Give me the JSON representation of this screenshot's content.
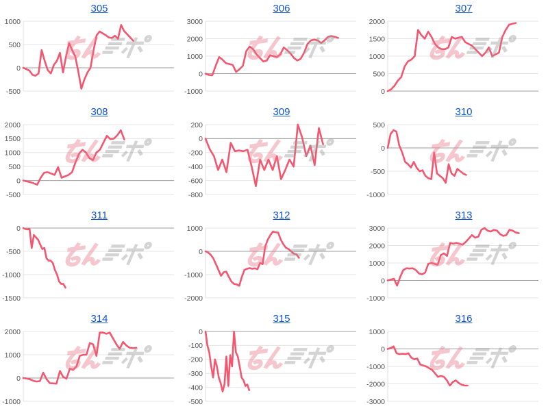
{
  "page": {
    "background": "#ffffff"
  },
  "colors": {
    "line": "#f4566f",
    "grid": "#e4e4e4",
    "zero_line": "#9e9e9e",
    "axis_line": "#dcdcdc",
    "tick_text": "#565656",
    "title_link": "#1155cc",
    "watermark_pink": "#e87a8a",
    "watermark_gray": "#9b9b9b"
  },
  "watermark": {
    "text": "みんレポ",
    "pink_text": "みん",
    "gray_text": "レポ",
    "opacity": 0.42
  },
  "chart_data": [
    {
      "type": "line",
      "title": "305",
      "ylim": [
        -500,
        1000
      ],
      "yticks": [
        1000,
        500,
        0,
        -500
      ],
      "x_span": 0.73,
      "values": [
        0,
        -30,
        -60,
        -150,
        -170,
        -120,
        380,
        150,
        -50,
        -120,
        60,
        150,
        320,
        -100,
        250,
        530,
        380,
        250,
        -80,
        -450,
        -250,
        -100,
        0,
        380,
        700,
        780,
        740,
        700,
        650,
        640,
        690,
        620,
        920,
        790,
        720,
        650,
        580
      ]
    },
    {
      "type": "line",
      "title": "306",
      "ylim": [
        -1000,
        3000
      ],
      "yticks": [
        3000,
        2000,
        1000,
        0,
        -1000
      ],
      "x_span": 0.88,
      "values": [
        0,
        -80,
        -100,
        450,
        950,
        800,
        600,
        550,
        500,
        100,
        250,
        450,
        1300,
        1550,
        1400,
        1100,
        900,
        700,
        750,
        1050,
        1000,
        950,
        1100,
        1500,
        1350,
        1150,
        900,
        750,
        850,
        1200,
        1700,
        1900,
        1950,
        1900,
        1750,
        1900,
        2100,
        2150,
        2100,
        2050
      ]
    },
    {
      "type": "line",
      "title": "307",
      "ylim": [
        0,
        2000
      ],
      "yticks": [
        2000,
        1500,
        1000,
        500,
        0
      ],
      "x_span": 0.85,
      "values": [
        0,
        50,
        150,
        300,
        400,
        700,
        850,
        900,
        1000,
        1750,
        1600,
        1500,
        1700,
        1550,
        1350,
        1250,
        1200,
        1200,
        1250,
        1550,
        1500,
        1530,
        1550,
        1400,
        1350,
        1300,
        1200,
        1100,
        1000,
        1100,
        1250,
        1000,
        1050,
        1100,
        1550,
        1750,
        1900,
        1930,
        1950
      ]
    },
    {
      "type": "line",
      "title": "308",
      "ylim": [
        -500,
        2000
      ],
      "yticks": [
        2000,
        1500,
        1000,
        500,
        0,
        -500
      ],
      "x_span": 0.67,
      "values": [
        0,
        -30,
        -60,
        -100,
        -150,
        100,
        280,
        300,
        250,
        200,
        480,
        100,
        150,
        200,
        300,
        650,
        950,
        1100,
        1000,
        800,
        730,
        1000,
        1100,
        1350,
        1600,
        1480,
        1500,
        1620,
        1800,
        1470
      ]
    },
    {
      "type": "line",
      "title": "309",
      "ylim": [
        -800,
        200
      ],
      "yticks": [
        200,
        0,
        -200,
        -400,
        -600,
        -800
      ],
      "x_span": 0.78,
      "values": [
        0,
        -150,
        -250,
        -450,
        -300,
        -480,
        -60,
        -180,
        -170,
        -180,
        -160,
        -400,
        -680,
        -300,
        -450,
        -300,
        -450,
        -250,
        -580,
        -450,
        -300,
        -400,
        200,
        20,
        -250,
        -100,
        -380,
        150,
        -80
      ]
    },
    {
      "type": "line",
      "title": "310",
      "ylim": [
        -1000,
        500
      ],
      "yticks": [
        500,
        0,
        -500,
        -1000
      ],
      "x_span": 0.52,
      "values": [
        0,
        300,
        380,
        350,
        50,
        -100,
        -300,
        -350,
        -420,
        -300,
        -430,
        -500,
        -480,
        -600,
        -650,
        -670,
        -100,
        -550,
        -600,
        -650,
        -750,
        -350,
        -550,
        -600,
        -450,
        -500,
        -550,
        -580
      ]
    },
    {
      "type": "line",
      "title": "311",
      "ylim": [
        -1500,
        0
      ],
      "yticks": [
        0,
        -500,
        -1000,
        -1500
      ],
      "x_span": 0.28,
      "values": [
        0,
        -20,
        -30,
        -20,
        -430,
        -150,
        -200,
        -250,
        -350,
        -450,
        -430,
        -650,
        -700,
        -700,
        -750,
        -900,
        -1000,
        -1150,
        -1200,
        -1200,
        -1280
      ]
    },
    {
      "type": "line",
      "title": "312",
      "ylim": [
        -2000,
        1000
      ],
      "yticks": [
        1000,
        0,
        -1000,
        -2000
      ],
      "x_span": 0.62,
      "values": [
        0,
        -50,
        -150,
        -300,
        -550,
        -800,
        -1050,
        -900,
        -870,
        -1100,
        -1300,
        -1400,
        -1420,
        -1480,
        -1100,
        -800,
        -750,
        -720,
        -750,
        -730,
        -770,
        -500,
        -550,
        200,
        500,
        700,
        850,
        820,
        800,
        500,
        300,
        150,
        100,
        0,
        -100,
        -120,
        -280
      ]
    },
    {
      "type": "line",
      "title": "313",
      "ylim": [
        -1000,
        3000
      ],
      "yticks": [
        3000,
        2000,
        1000,
        0,
        -1000
      ],
      "x_span": 0.87,
      "values": [
        0,
        50,
        100,
        -300,
        200,
        600,
        700,
        680,
        700,
        600,
        400,
        350,
        450,
        950,
        1000,
        950,
        900,
        1450,
        1550,
        1400,
        2150,
        2100,
        2150,
        2100,
        2050,
        2200,
        2400,
        2600,
        2450,
        2500,
        2900,
        3000,
        2850,
        2800,
        2900,
        2850,
        2650,
        2550,
        2600,
        2900,
        2850,
        2750,
        2700
      ]
    },
    {
      "type": "line",
      "title": "314",
      "ylim": [
        -1000,
        2000
      ],
      "yticks": [
        2000,
        1000,
        0,
        -1000
      ],
      "x_span": 0.75,
      "values": [
        0,
        -20,
        -50,
        -120,
        -150,
        -130,
        230,
        -50,
        -220,
        -230,
        -240,
        300,
        50,
        -30,
        400,
        350,
        500,
        950,
        1000,
        1000,
        1500,
        1450,
        950,
        1950,
        1950,
        1900,
        1950,
        1700,
        1450,
        1250,
        1550,
        1400,
        1300,
        1280,
        1300
      ]
    },
    {
      "type": "line",
      "title": "315",
      "ylim": [
        -500,
        0
      ],
      "yticks": [
        0,
        -100,
        -200,
        -300,
        -400,
        -500
      ],
      "x_span": 0.29,
      "values": [
        0,
        -100,
        -150,
        -250,
        -330,
        -200,
        -250,
        -330,
        -370,
        -430,
        -380,
        -180,
        -390,
        -170,
        -250,
        0,
        -150,
        -180,
        -250,
        -330,
        -350,
        -390,
        -380,
        -420
      ]
    },
    {
      "type": "line",
      "title": "316",
      "ylim": [
        -3000,
        1000
      ],
      "yticks": [
        1000,
        0,
        -1000,
        -2000,
        -3000
      ],
      "x_span": 0.53,
      "values": [
        0,
        50,
        150,
        -250,
        -300,
        -280,
        -300,
        -250,
        -500,
        -600,
        -550,
        -900,
        -950,
        -1000,
        -1100,
        -1200,
        -1400,
        -1600,
        -1550,
        -1600,
        -1800,
        -2100,
        -1900,
        -1800,
        -1950,
        -2050,
        -2100,
        -2100
      ]
    }
  ]
}
